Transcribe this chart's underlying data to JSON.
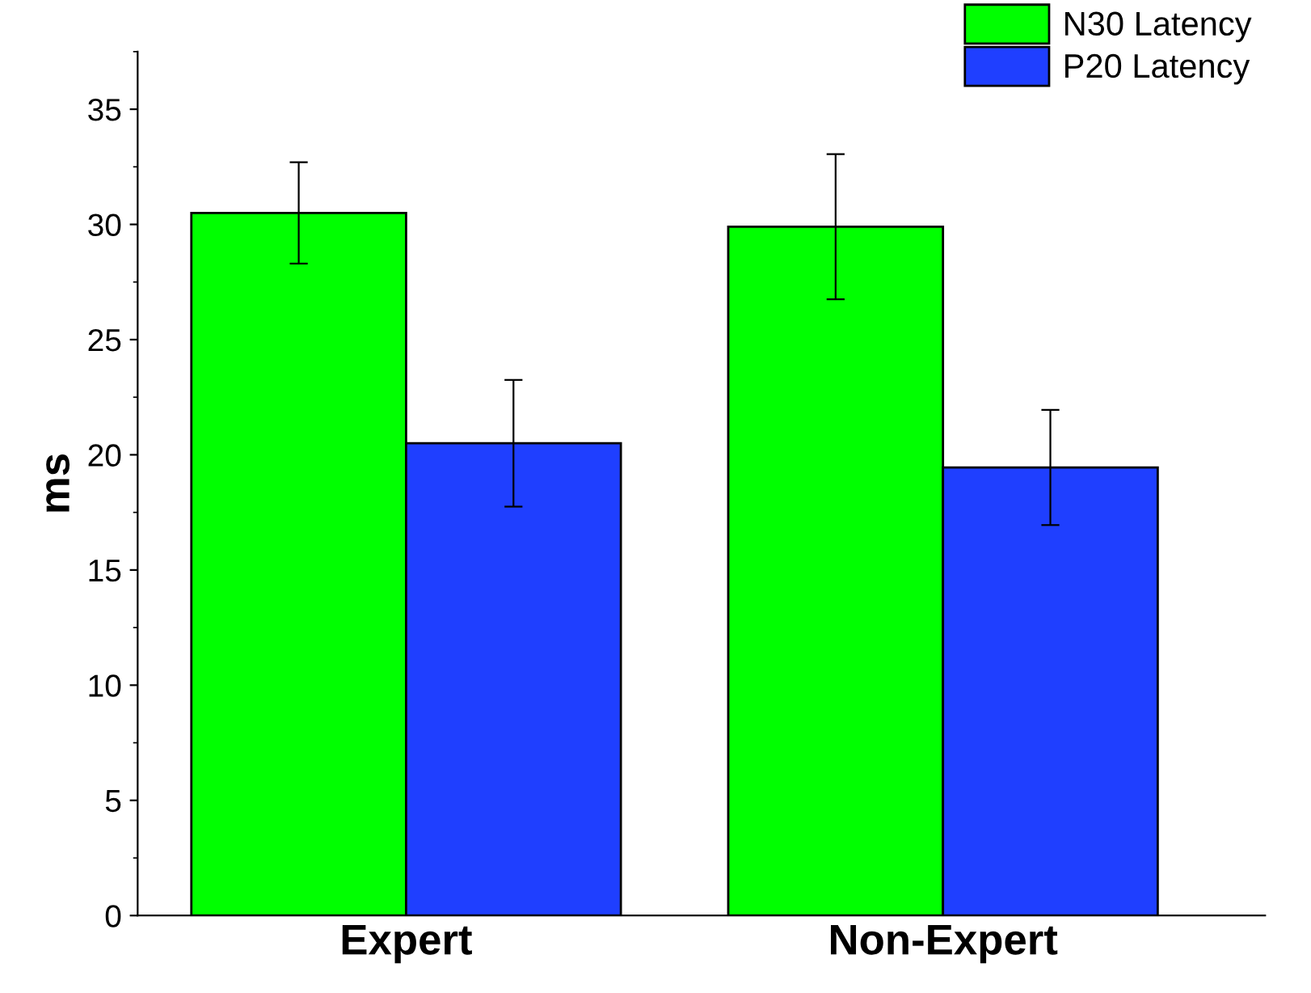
{
  "chart_data": {
    "type": "bar",
    "ylabel": "ms",
    "categories": [
      "Expert",
      "Non-Expert"
    ],
    "series": [
      {
        "name": "N30 Latency",
        "color": "#00ff00",
        "values": [
          30.5,
          29.9
        ],
        "errors": [
          2.2,
          3.15
        ]
      },
      {
        "name": "P20 Latency",
        "color": "#1f3fff",
        "values": [
          20.5,
          19.45
        ],
        "errors": [
          2.75,
          2.5
        ]
      }
    ],
    "ylim": [
      0,
      37.5
    ],
    "yticks": [
      0,
      5,
      10,
      15,
      20,
      25,
      30,
      35
    ],
    "grid": false,
    "legend": "top right"
  }
}
